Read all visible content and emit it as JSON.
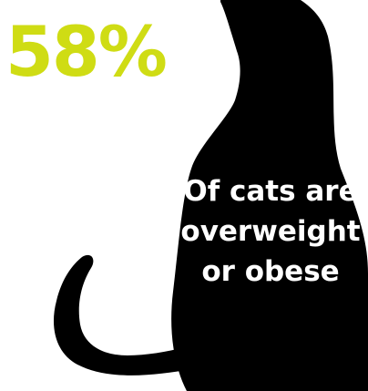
{
  "stat": {
    "value": "58%",
    "color": "#cfdc14"
  },
  "caption": {
    "lines": [
      "Of cats are",
      "overweight",
      "or obese"
    ],
    "color": "#ffffff"
  },
  "illustration": {
    "icon": "cat-silhouette-icon",
    "color": "#000000",
    "background": "#ffffff"
  }
}
